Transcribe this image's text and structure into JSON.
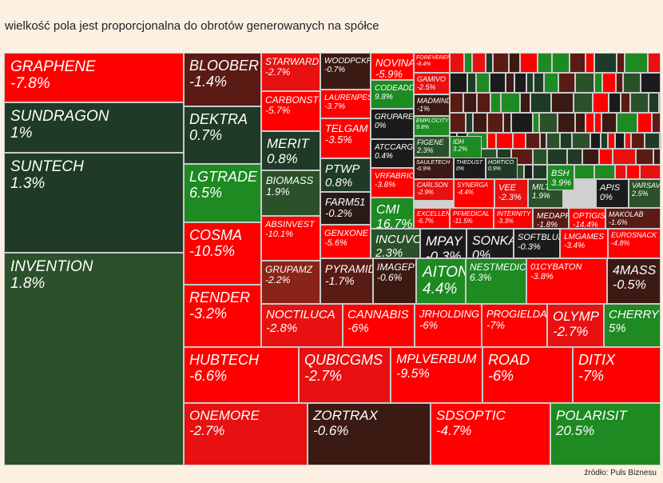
{
  "title": "wielkość pola jest proporcjonalna do obrotów generowanych na spółce",
  "source": "źródło: Puls Biznesu",
  "colors": {
    "dark_green": "#1f3a26",
    "mid_green": "#2e5a2b",
    "green": "#1d8a22",
    "dark_red": "#5a1b14",
    "red": "#ff0000",
    "black": "#1b1b1b",
    "background": "#fcf0e3"
  },
  "chart_data": {
    "type": "treemap",
    "title": "wielkość pola jest proporcjonalna do obrotów generowanych na spółce",
    "value_meaning": "turnover (area), daily % change (label/color)",
    "tiles": [
      {
        "name": "GRAPHENE",
        "change": "-7.8%",
        "color": "#ff0000"
      },
      {
        "name": "SUNDRAGON",
        "change": "1%",
        "color": "#1f3a26"
      },
      {
        "name": "SUNTECH",
        "change": "1.3%",
        "color": "#1f3a26"
      },
      {
        "name": "INVENTION",
        "change": "1.8%",
        "color": "#2a5129"
      },
      {
        "name": "BLOOBER",
        "change": "-1.4%",
        "color": "#5a1b14"
      },
      {
        "name": "DEKTRA",
        "change": "0.7%",
        "color": "#1f3a26"
      },
      {
        "name": "LGTRADE",
        "change": "6.5%",
        "color": "#1d8a22"
      },
      {
        "name": "COSMA",
        "change": "-10.5%",
        "color": "#ff0000"
      },
      {
        "name": "RENDER",
        "change": "-3.2%",
        "color": "#ff0000"
      },
      {
        "name": "STARWARD",
        "change": "-2.7%",
        "color": "#e81010"
      },
      {
        "name": "CARBONSTU",
        "change": "-5.7%",
        "color": "#ff0000"
      },
      {
        "name": "WOODPCKR",
        "change": "-0.7%",
        "color": "#3b1a14"
      },
      {
        "name": "LAURENPES",
        "change": "-3.7%",
        "color": "#ff0000"
      },
      {
        "name": "NOVINA",
        "change": "-5.9%",
        "color": "#ff0000"
      },
      {
        "name": "MERIT",
        "change": "0.8%",
        "color": "#1f3a26"
      },
      {
        "name": "TELGAM",
        "change": "-3.5%",
        "color": "#ff0000"
      },
      {
        "name": "PTWP",
        "change": "0.8%",
        "color": "#1f3a26"
      },
      {
        "name": "BIOMASS",
        "change": "1.9%",
        "color": "#2a5129"
      },
      {
        "name": "FARM51",
        "change": "-0.2%",
        "color": "#2a1a16"
      },
      {
        "name": "ABSINVEST",
        "change": "-10.1%",
        "color": "#ff0000"
      },
      {
        "name": "GENXONE",
        "change": "-5.6%",
        "color": "#ff0000"
      },
      {
        "name": "GRUPAMZ",
        "change": "-2.2%",
        "color": "#8a2418"
      },
      {
        "name": "PYRAMID",
        "change": "-1.7%",
        "color": "#5a1b14"
      },
      {
        "name": "IMAGEPWR",
        "change": "-0.6%",
        "color": "#3b1a14"
      },
      {
        "name": "CODEADDIC",
        "change": "9.8%",
        "color": "#1d8a22"
      },
      {
        "name": "GRUPAREC",
        "change": "0%",
        "color": "#1b1b1b"
      },
      {
        "name": "ATCCARGO",
        "change": "0.4%",
        "color": "#1b1b1b"
      },
      {
        "name": "VRFABRIC",
        "change": "-3.8%",
        "color": "#ff0000"
      },
      {
        "name": "CMI",
        "change": "16.7%",
        "color": "#1d8a22"
      },
      {
        "name": "INCUVO",
        "change": "2.3%",
        "color": "#2a5129"
      },
      {
        "name": "MPAY",
        "change": "-0.3%",
        "color": "#1b1b1b"
      },
      {
        "name": "SONKA",
        "change": "0%",
        "color": "#1b1b1b"
      },
      {
        "name": "SOFTBLUE",
        "change": "-0.3%",
        "color": "#1b1b1b"
      },
      {
        "name": "AITON",
        "change": "4.4%",
        "color": "#1d8a22"
      },
      {
        "name": "NESTMEDIC",
        "change": "6.3%",
        "color": "#1d8a22"
      },
      {
        "name": "01CYBATON",
        "change": "-3.8%",
        "color": "#ff0000"
      },
      {
        "name": "4MASS",
        "change": "-0.5%",
        "color": "#3b1a14"
      },
      {
        "name": "NOCTILUCA",
        "change": "-2.8%",
        "color": "#e81010"
      },
      {
        "name": "CANNABIS",
        "change": "-6%",
        "color": "#ff0000"
      },
      {
        "name": "JRHOLDING",
        "change": "-6%",
        "color": "#ff0000"
      },
      {
        "name": "PROGIELDA",
        "change": "-7%",
        "color": "#ff0000"
      },
      {
        "name": "OLYMP",
        "change": "-2.7%",
        "color": "#e81010"
      },
      {
        "name": "CHERRY",
        "change": "5%",
        "color": "#1d8a22"
      },
      {
        "name": "HUBTECH",
        "change": "-6.6%",
        "color": "#ff0000"
      },
      {
        "name": "QUBICGMS",
        "change": "-2.7%",
        "color": "#e81010"
      },
      {
        "name": "MPLVERBUM",
        "change": "-9.5%",
        "color": "#ff0000"
      },
      {
        "name": "ROAD",
        "change": "-6%",
        "color": "#ff0000"
      },
      {
        "name": "DITIX",
        "change": "-7%",
        "color": "#ff0000"
      },
      {
        "name": "ONEMORE",
        "change": "-2.7%",
        "color": "#e81010"
      },
      {
        "name": "ZORTRAX",
        "change": "-0.6%",
        "color": "#3b1a14"
      },
      {
        "name": "SDSOPTIC",
        "change": "-4.7%",
        "color": "#ff0000"
      },
      {
        "name": "POLARISIT",
        "change": "20.5%",
        "color": "#1d8a22"
      },
      {
        "name": "FOREVEREN",
        "change": "-8.4%",
        "color": "#ff0000"
      },
      {
        "name": "GAMIVO",
        "change": "-2.5%",
        "color": "#e81010"
      },
      {
        "name": "MADMIND",
        "change": "-1%",
        "color": "#3b1a14"
      },
      {
        "name": "EMPLOCITY",
        "change": "9.8%",
        "color": "#1d8a22"
      },
      {
        "name": "FIGENE",
        "change": "2.3%",
        "color": "#2a5129"
      },
      {
        "name": "SAULETECH",
        "change": "-0.9%",
        "color": "#3b1a14"
      },
      {
        "name": "CARLSON",
        "change": "-2.9%",
        "color": "#e81010"
      },
      {
        "name": "EXCELLENC",
        "change": "-6.7%",
        "color": "#ff0000"
      },
      {
        "name": "IDH",
        "change": "3.2%",
        "color": "#1d8a22"
      },
      {
        "name": "THEDUST",
        "change": "0%",
        "color": "#1b1b1b"
      },
      {
        "name": "HORTICO",
        "change": "0.9%",
        "color": "#1f3a26"
      },
      {
        "name": "SYNERGA",
        "change": "-4.4%",
        "color": "#ff0000"
      },
      {
        "name": "VEE",
        "change": "-2.3%",
        "color": "#e81010"
      },
      {
        "name": "MILTON",
        "change": "1.9%",
        "color": "#2a5129"
      },
      {
        "name": "BSH",
        "change": "3.9%",
        "color": "#1d8a22"
      },
      {
        "name": "APIS",
        "change": "0%",
        "color": "#1b1b1b"
      },
      {
        "name": "VARSAV",
        "change": "2.5%",
        "color": "#2a5129"
      },
      {
        "name": "PFMEDICAL",
        "change": "-11.5%",
        "color": "#ff0000"
      },
      {
        "name": "INTERNITY",
        "change": "-3.3%",
        "color": "#ff0000"
      },
      {
        "name": "MEDAPP",
        "change": "-1.8%",
        "color": "#5a1b14"
      },
      {
        "name": "OPTIGIS",
        "change": "-14.4%",
        "color": "#ff0000"
      },
      {
        "name": "MAKOLAB",
        "change": "-1.6%",
        "color": "#5a1b14"
      },
      {
        "name": "LMGAMES",
        "change": "-3.4%",
        "color": "#ff0000"
      },
      {
        "name": "EUROSNACK",
        "change": "-4.8%",
        "color": "#ff0000"
      }
    ]
  }
}
